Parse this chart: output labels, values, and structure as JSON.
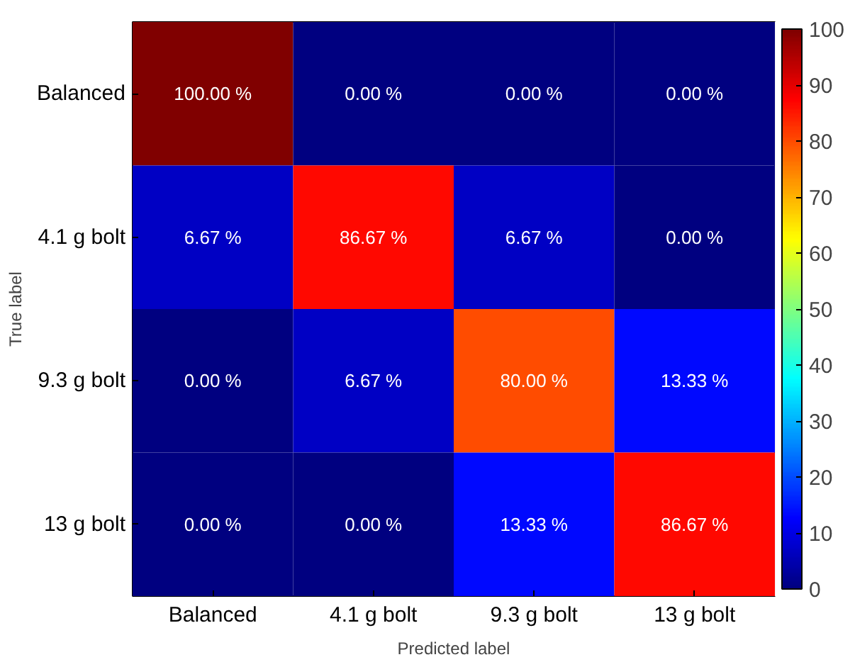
{
  "chart_data": {
    "type": "heatmap",
    "xlabel": "Predicted label",
    "ylabel": "True label",
    "categories": [
      "Balanced",
      "4.1 g bolt",
      "9.3 g bolt",
      "13 g bolt"
    ],
    "y_categories": [
      "Balanced",
      "4.1 g bolt",
      "9.3 g bolt",
      "13 g bolt"
    ],
    "cells": [
      [
        100,
        0,
        0,
        0
      ],
      [
        6.67,
        86.67,
        6.67,
        0
      ],
      [
        0,
        6.67,
        80,
        13.33
      ],
      [
        0,
        0,
        13.33,
        86.67
      ]
    ],
    "cell_labels": [
      [
        "100.00 %",
        "0.00 %",
        "0.00 %",
        "0.00 %"
      ],
      [
        "6.67 %",
        "86.67 %",
        "6.67 %",
        "0.00 %"
      ],
      [
        "0.00 %",
        "6.67 %",
        "80.00 %",
        "13.33 %"
      ],
      [
        "0.00 %",
        "0.00 %",
        "13.33 %",
        "86.67 %"
      ]
    ],
    "clim": [
      0,
      100
    ],
    "cticks": [
      0,
      10,
      20,
      30,
      40,
      50,
      60,
      70,
      80,
      90,
      100
    ]
  }
}
